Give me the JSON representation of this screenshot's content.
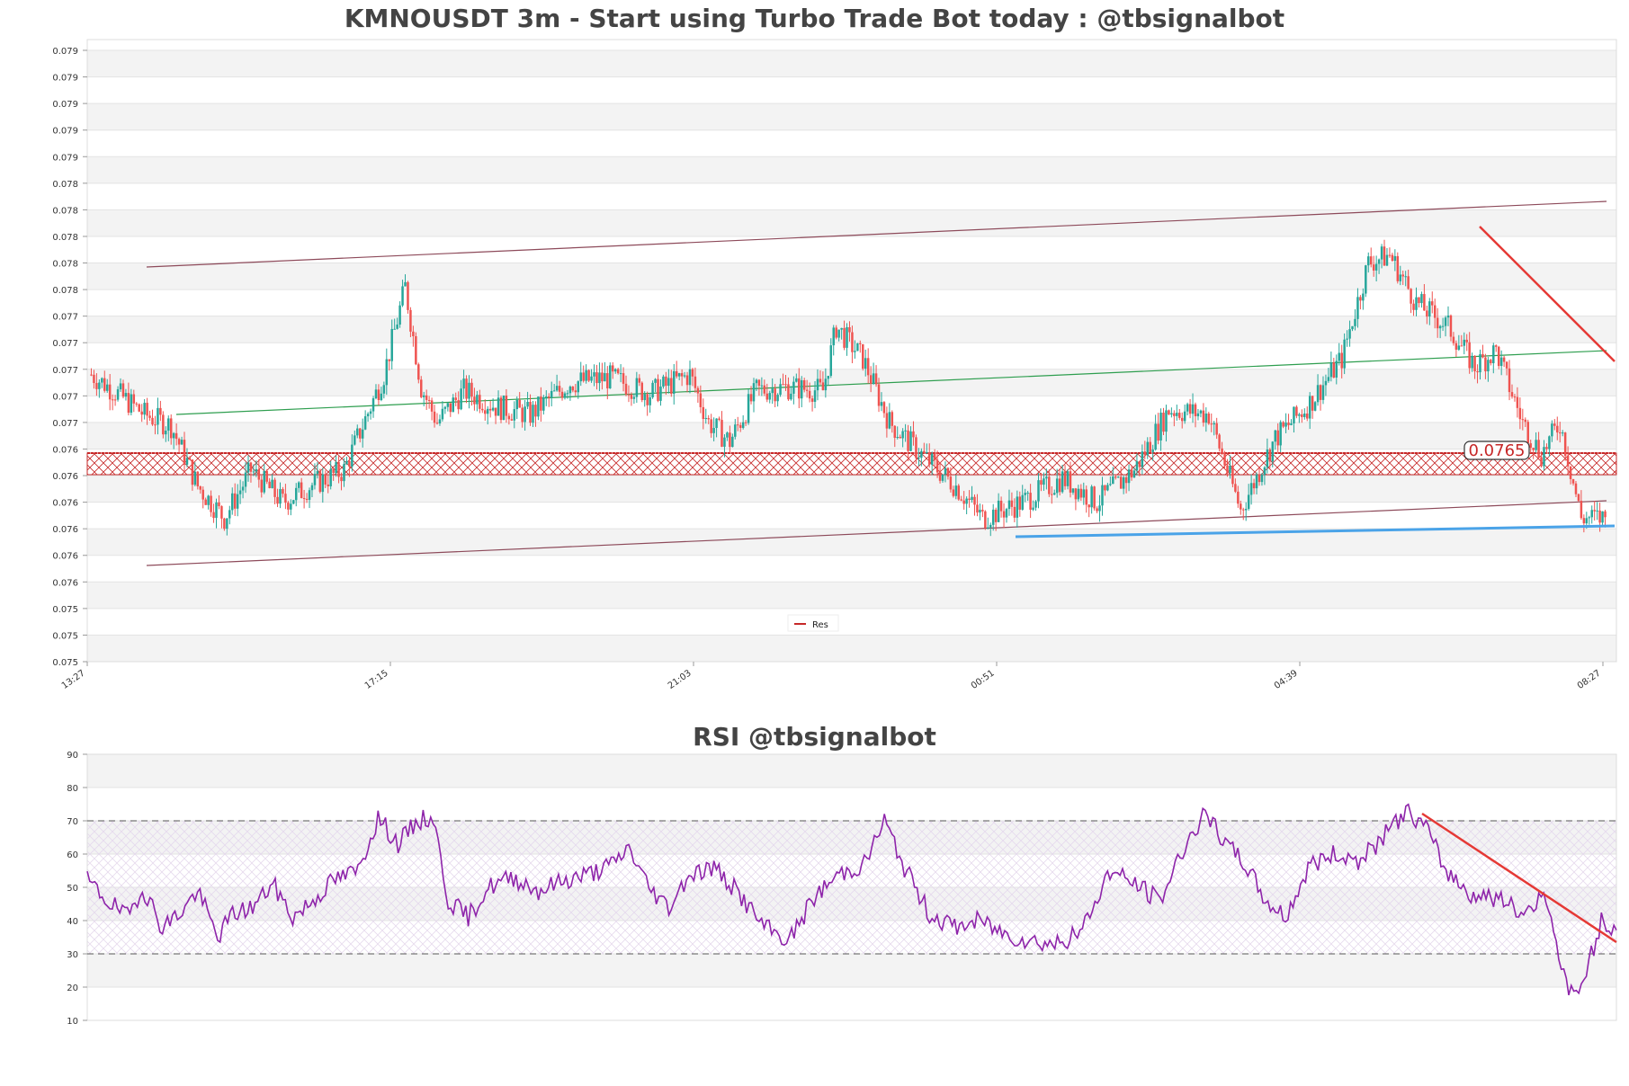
{
  "main_chart": {
    "title": "KMNOUSDT 3m - Start using Turbo Trade Bot today : @tbsignalbot",
    "y_tick_labels": [
      "0.079",
      "0.079",
      "0.079",
      "0.079",
      "0.079",
      "0.078",
      "0.078",
      "0.078",
      "0.078",
      "0.078",
      "0.077",
      "0.077",
      "0.077",
      "0.077",
      "0.077",
      "0.076",
      "0.076",
      "0.076",
      "0.076",
      "0.076",
      "0.076",
      "0.075",
      "0.075",
      "0.075"
    ],
    "x_tick_labels": [
      "13:27",
      "17:15",
      "21:03",
      "00:51",
      "04:39",
      "08:27"
    ],
    "price_label": "0.0765",
    "legend": [
      "Res"
    ]
  },
  "rsi_chart": {
    "title": "RSI @tbsignalbot",
    "y_tick_labels": [
      "90",
      "80",
      "70",
      "60",
      "50",
      "40",
      "30",
      "20",
      "10"
    ]
  },
  "colors": {
    "up": "#26a69a",
    "down": "#ef5350",
    "res": "#c62828",
    "channel": "#8d4a5a",
    "ma": "#2e9e4f",
    "support": "#4aa3e8",
    "rsi": "#8e24aa",
    "trend": "#e53935"
  },
  "chart_data": [
    {
      "type": "candlestick",
      "title": "KMNOUSDT 3m - Start using Turbo Trade Bot today : @tbsignalbot",
      "x_ticks": [
        "13:27",
        "17:15",
        "21:03",
        "00:51",
        "04:39",
        "08:27"
      ],
      "ylim": [
        0.0755,
        0.0794
      ],
      "current_price": 0.0765,
      "close_path": [
        [
          0,
          0.0773
        ],
        [
          10,
          0.07718
        ],
        [
          20,
          0.07705
        ],
        [
          30,
          0.07698
        ],
        [
          40,
          0.0766
        ],
        [
          50,
          0.0764
        ],
        [
          60,
          0.0767
        ],
        [
          72,
          0.0765
        ],
        [
          82,
          0.0766
        ],
        [
          95,
          0.0767
        ],
        [
          110,
          0.0773
        ],
        [
          118,
          0.07785
        ],
        [
          124,
          0.07722
        ],
        [
          130,
          0.077
        ],
        [
          140,
          0.0772
        ],
        [
          152,
          0.0771
        ],
        [
          165,
          0.07705
        ],
        [
          180,
          0.07725
        ],
        [
          195,
          0.07728
        ],
        [
          210,
          0.07718
        ],
        [
          225,
          0.0773
        ],
        [
          232,
          0.077
        ],
        [
          240,
          0.07688
        ],
        [
          250,
          0.0772
        ],
        [
          262,
          0.07722
        ],
        [
          275,
          0.0772
        ],
        [
          280,
          0.0776
        ],
        [
          290,
          0.0774
        ],
        [
          300,
          0.077
        ],
        [
          312,
          0.0768
        ],
        [
          325,
          0.0766
        ],
        [
          335,
          0.0764
        ],
        [
          350,
          0.0765
        ],
        [
          365,
          0.07665
        ],
        [
          378,
          0.0765
        ],
        [
          392,
          0.0767
        ],
        [
          405,
          0.07708
        ],
        [
          420,
          0.07705
        ],
        [
          432,
          0.07645
        ],
        [
          445,
          0.0769
        ],
        [
          458,
          0.07712
        ],
        [
          470,
          0.0774
        ],
        [
          480,
          0.078
        ],
        [
          488,
          0.07805
        ],
        [
          498,
          0.07775
        ],
        [
          510,
          0.0776
        ],
        [
          520,
          0.07735
        ],
        [
          528,
          0.07745
        ],
        [
          538,
          0.077
        ],
        [
          545,
          0.0768
        ],
        [
          552,
          0.077
        ],
        [
          560,
          0.0764
        ],
        [
          570,
          0.0764
        ]
      ]
    },
    {
      "type": "line",
      "title": "RSI @tbsignalbot",
      "ylim": [
        10,
        90
      ],
      "bands": [
        30,
        70
      ],
      "points": [
        [
          0,
          52
        ],
        [
          8,
          46
        ],
        [
          16,
          41
        ],
        [
          22,
          50
        ],
        [
          30,
          38
        ],
        [
          38,
          43
        ],
        [
          44,
          49
        ],
        [
          52,
          35
        ],
        [
          58,
          42
        ],
        [
          66,
          44
        ],
        [
          74,
          51
        ],
        [
          82,
          41
        ],
        [
          90,
          46
        ],
        [
          98,
          52
        ],
        [
          108,
          55
        ],
        [
          116,
          71
        ],
        [
          124,
          63
        ],
        [
          132,
          70
        ],
        [
          138,
          71
        ],
        [
          144,
          46
        ],
        [
          152,
          41
        ],
        [
          160,
          50
        ],
        [
          170,
          53
        ],
        [
          180,
          49
        ],
        [
          190,
          52
        ],
        [
          200,
          54
        ],
        [
          210,
          57
        ],
        [
          216,
          62
        ],
        [
          224,
          50
        ],
        [
          232,
          44
        ],
        [
          240,
          54
        ],
        [
          250,
          56
        ],
        [
          260,
          48
        ],
        [
          270,
          38
        ],
        [
          280,
          34
        ],
        [
          290,
          47
        ],
        [
          300,
          54
        ],
        [
          310,
          57
        ],
        [
          318,
          70
        ],
        [
          326,
          56
        ],
        [
          336,
          42
        ],
        [
          346,
          38
        ],
        [
          356,
          40
        ],
        [
          366,
          36
        ],
        [
          376,
          34
        ],
        [
          386,
          33
        ],
        [
          396,
          36
        ],
        [
          408,
          55
        ],
        [
          418,
          51
        ],
        [
          428,
          46
        ],
        [
          438,
          63
        ],
        [
          446,
          72
        ],
        [
          454,
          63
        ],
        [
          462,
          57
        ],
        [
          470,
          46
        ],
        [
          478,
          41
        ],
        [
          488,
          57
        ],
        [
          498,
          60
        ],
        [
          508,
          58
        ],
        [
          518,
          66
        ],
        [
          526,
          73
        ],
        [
          534,
          68
        ],
        [
          542,
          55
        ],
        [
          552,
          48
        ],
        [
          562,
          47
        ],
        [
          572,
          42
        ],
        [
          582,
          48
        ],
        [
          590,
          20
        ],
        [
          596,
          19
        ],
        [
          604,
          40
        ],
        [
          610,
          36
        ]
      ]
    }
  ]
}
